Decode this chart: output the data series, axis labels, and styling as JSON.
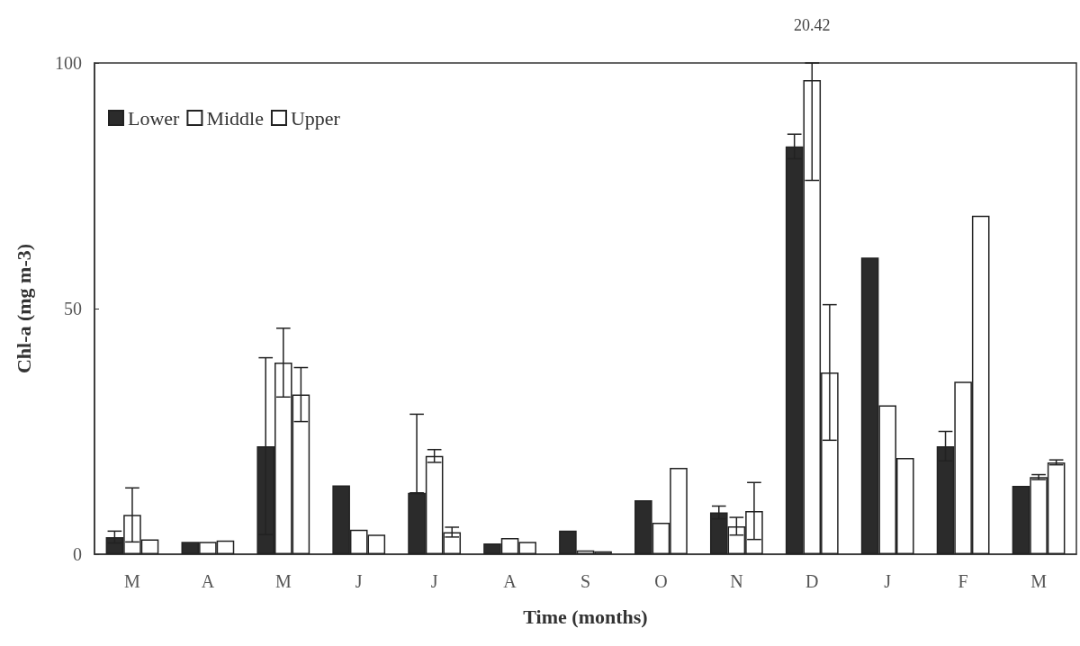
{
  "chart_data": {
    "type": "bar",
    "xlabel": "Time (months)",
    "ylabel": "Chl-a (mg m-3)",
    "categories": [
      "M",
      "A",
      "M",
      "J",
      "J",
      "A",
      "S",
      "O",
      "N",
      "D",
      "J",
      "F",
      "M"
    ],
    "series": [
      {
        "name": "Lower",
        "color": "#2b2b2b",
        "values": [
          3.5,
          2.5,
          22,
          14,
          12.5,
          2.2,
          4.8,
          11,
          8.5,
          83,
          60.4,
          22,
          13.9
        ],
        "errors": [
          1.2,
          null,
          18,
          null,
          [
            12.5,
            28.5
          ],
          null,
          null,
          null,
          1.3,
          2.5,
          null,
          3,
          null
        ]
      },
      {
        "name": "Middle",
        "color": "#ffffff",
        "values": [
          8,
          2.5,
          39,
          5,
          20,
          3.3,
          0.8,
          6.4,
          5.7,
          96.5,
          30.3,
          35.1,
          15.7
        ],
        "errors": [
          5.5,
          null,
          7,
          null,
          1.3,
          null,
          null,
          null,
          1.8,
          [
            76.1,
            100
          ],
          null,
          null,
          0.5
        ]
      },
      {
        "name": "Upper",
        "color": "#ffffff",
        "values": [
          3,
          2.8,
          32.5,
          4,
          4.5,
          2.5,
          0.6,
          17.6,
          8.8,
          37,
          19.6,
          68.9,
          18.7
        ],
        "errors": [
          null,
          null,
          5.5,
          null,
          1,
          null,
          null,
          null,
          5.8,
          13.8,
          null,
          null,
          0.5
        ]
      }
    ],
    "annotations": [
      {
        "text": "20.42",
        "x": "D",
        "y": 100
      }
    ],
    "ylim": [
      0,
      100
    ],
    "yticks": [
      0,
      50,
      100
    ],
    "grid": false,
    "legend": "top left"
  }
}
